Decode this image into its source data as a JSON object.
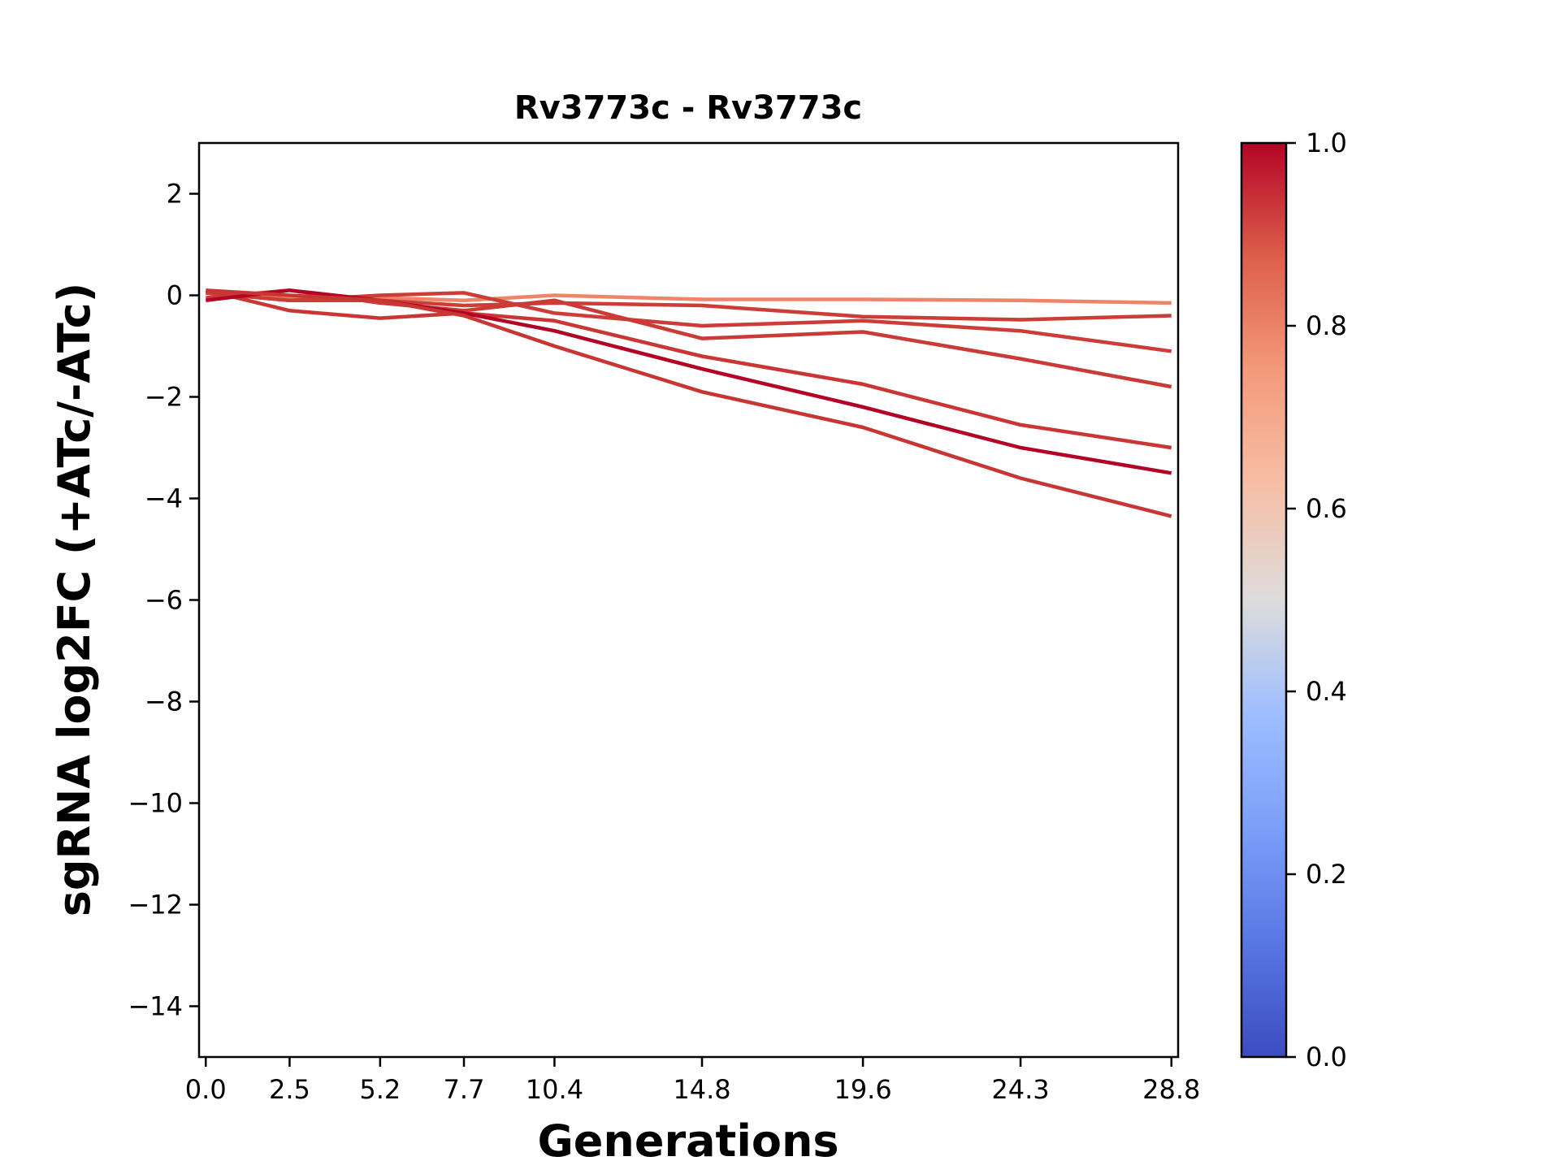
{
  "chart_data": {
    "type": "line",
    "title": "Rv3773c - Rv3773c",
    "xlabel": "Generations",
    "ylabel": "sgRNA log2FC (+ATc/-ATc)",
    "x": [
      0.0,
      2.5,
      5.2,
      7.7,
      10.4,
      14.8,
      19.6,
      24.3,
      28.8
    ],
    "x_tick_labels": [
      "0.0",
      "2.5",
      "5.2",
      "7.7",
      "10.4",
      "14.8",
      "19.6",
      "24.3",
      "28.8"
    ],
    "xlim": [
      -0.2,
      29.0
    ],
    "ylim": [
      -15,
      3
    ],
    "y_ticks": [
      2,
      0,
      -2,
      -4,
      -6,
      -8,
      -10,
      -12,
      -14
    ],
    "y_tick_labels": [
      "2",
      "0",
      "−2",
      "−4",
      "−6",
      "−8",
      "−10",
      "−12",
      "−14"
    ],
    "grid": false,
    "colorbar": {
      "colormap": "coolwarm",
      "range": [
        0.0,
        1.0
      ],
      "ticks": [
        0.0,
        0.2,
        0.4,
        0.6,
        0.8,
        1.0
      ],
      "tick_labels": [
        "0.0",
        "0.2",
        "0.4",
        "0.6",
        "0.8",
        "1.0"
      ],
      "stops": [
        {
          "offset": 0.0,
          "color": "#3b4cc0"
        },
        {
          "offset": 0.125,
          "color": "#5977e3"
        },
        {
          "offset": 0.25,
          "color": "#7b9ff9"
        },
        {
          "offset": 0.375,
          "color": "#9ebeff"
        },
        {
          "offset": 0.5,
          "color": "#dddcdc"
        },
        {
          "offset": 0.625,
          "color": "#f6bfa6"
        },
        {
          "offset": 0.75,
          "color": "#f49a7b"
        },
        {
          "offset": 0.875,
          "color": "#dd5f4b"
        },
        {
          "offset": 1.0,
          "color": "#b40426"
        }
      ]
    },
    "series": [
      {
        "values": [
          0.05,
          -0.05,
          -0.05,
          -0.1,
          0.0,
          -0.08,
          -0.08,
          -0.1,
          -0.15
        ],
        "color": "#ee8468",
        "colormap_value": 0.8
      },
      {
        "values": [
          0.05,
          -0.1,
          -0.1,
          -0.2,
          -0.15,
          -0.2,
          -0.42,
          -0.48,
          -0.4
        ],
        "color": "#cc3d37",
        "colormap_value": 0.9
      },
      {
        "values": [
          0.05,
          -0.1,
          0.0,
          0.05,
          -0.35,
          -0.6,
          -0.5,
          -0.7,
          -1.1
        ],
        "color": "#cc3d37",
        "colormap_value": 0.9
      },
      {
        "values": [
          -0.05,
          0.1,
          -0.15,
          -0.3,
          -0.1,
          -0.85,
          -0.72,
          -1.25,
          -1.8
        ],
        "color": "#ca3a36",
        "colormap_value": 0.91
      },
      {
        "values": [
          0.1,
          -0.3,
          -0.45,
          -0.35,
          -0.5,
          -1.2,
          -1.75,
          -2.55,
          -3.0
        ],
        "color": "#c93634",
        "colormap_value": 0.92
      },
      {
        "values": [
          -0.1,
          0.1,
          -0.1,
          -0.35,
          -0.7,
          -1.45,
          -2.2,
          -3.0,
          -3.5
        ],
        "color": "#b40426",
        "colormap_value": 1.0
      },
      {
        "values": [
          0.1,
          0.0,
          -0.1,
          -0.4,
          -1.0,
          -1.9,
          -2.6,
          -3.6,
          -4.35
        ],
        "color": "#c83633",
        "colormap_value": 0.92
      }
    ]
  }
}
